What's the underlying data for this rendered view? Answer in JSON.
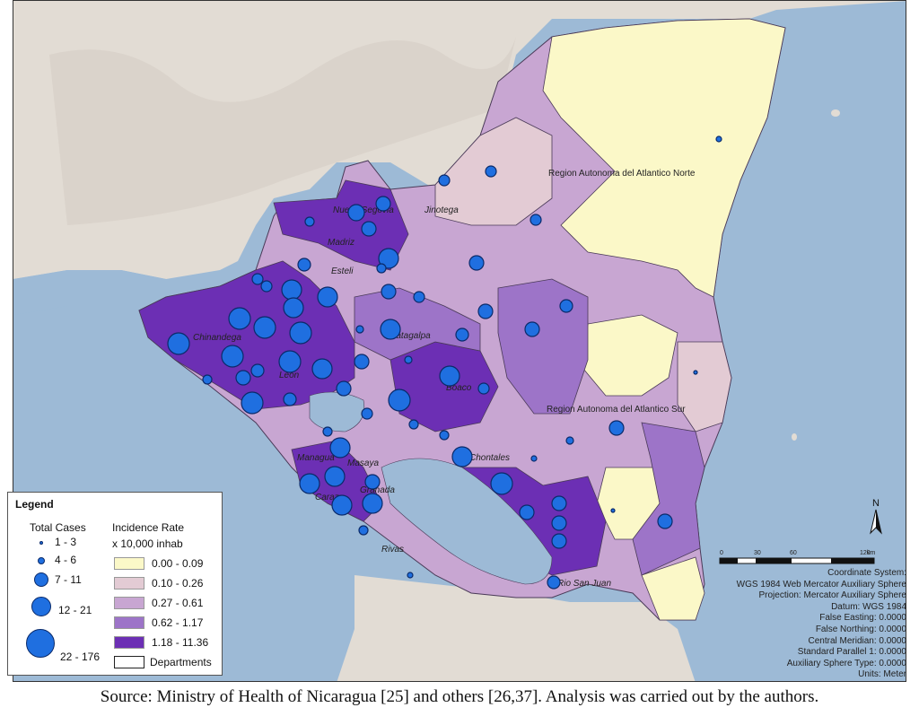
{
  "map": {
    "regions": [
      {
        "name": "Region Autonoma del Atlantico Norte"
      },
      {
        "name": "Region Autonoma del Atlantico Sur"
      }
    ],
    "departments": [
      "Nueva Segovia",
      "Jinotega",
      "Madriz",
      "Esteli",
      "Chinandega",
      "Leon",
      "Matagalpa",
      "Boaco",
      "Managua",
      "Masaya",
      "Carazo",
      "Granada",
      "Chontales",
      "Rivas",
      "Rio San Juan"
    ],
    "colors": {
      "sea": "#9dbad6",
      "land_terrain": "#e2dcd4",
      "outline": "#4a3a58"
    }
  },
  "legend": {
    "title": "Legend",
    "total_cases_header": "Total Cases",
    "incidence_header": "Incidence Rate",
    "incidence_unit": "x 10,000 inhab",
    "total_cases": [
      "1 - 3",
      "4 - 6",
      "7 - 11",
      "12 - 21",
      "22 - 176"
    ],
    "incidence_classes": [
      {
        "label": "0.00 - 0.09",
        "color": "#fbf8c8"
      },
      {
        "label": "0.10 - 0.26",
        "color": "#e3cbd4"
      },
      {
        "label": "0.27 - 0.61",
        "color": "#c8a6d2"
      },
      {
        "label": "0.62 - 1.17",
        "color": "#9d74c8"
      },
      {
        "label": "1.18 - 11.36",
        "color": "#6c2fb4"
      }
    ],
    "departments_label": "Departments"
  },
  "scale": {
    "ticks": [
      "0",
      "30",
      "60",
      "120"
    ],
    "unit": "km"
  },
  "north_label": "N",
  "coordinate_system": [
    "Coordinate System:",
    "WGS 1984 Web Mercator Auxiliary Sphere",
    "Projection: Mercator Auxiliary Sphere",
    "Datum: WGS 1984",
    "False Easting: 0.0000",
    "False Northing: 0.0000",
    "Central Meridian: 0.0000",
    "Standard Parallel 1: 0.0000",
    "Auxiliary Sphere Type: 0.0000",
    "Units: Meter"
  ],
  "source_text": "Source: Ministry of Health of Nicaragua [25] and others [26,37]. Analysis was carried out by the authors."
}
